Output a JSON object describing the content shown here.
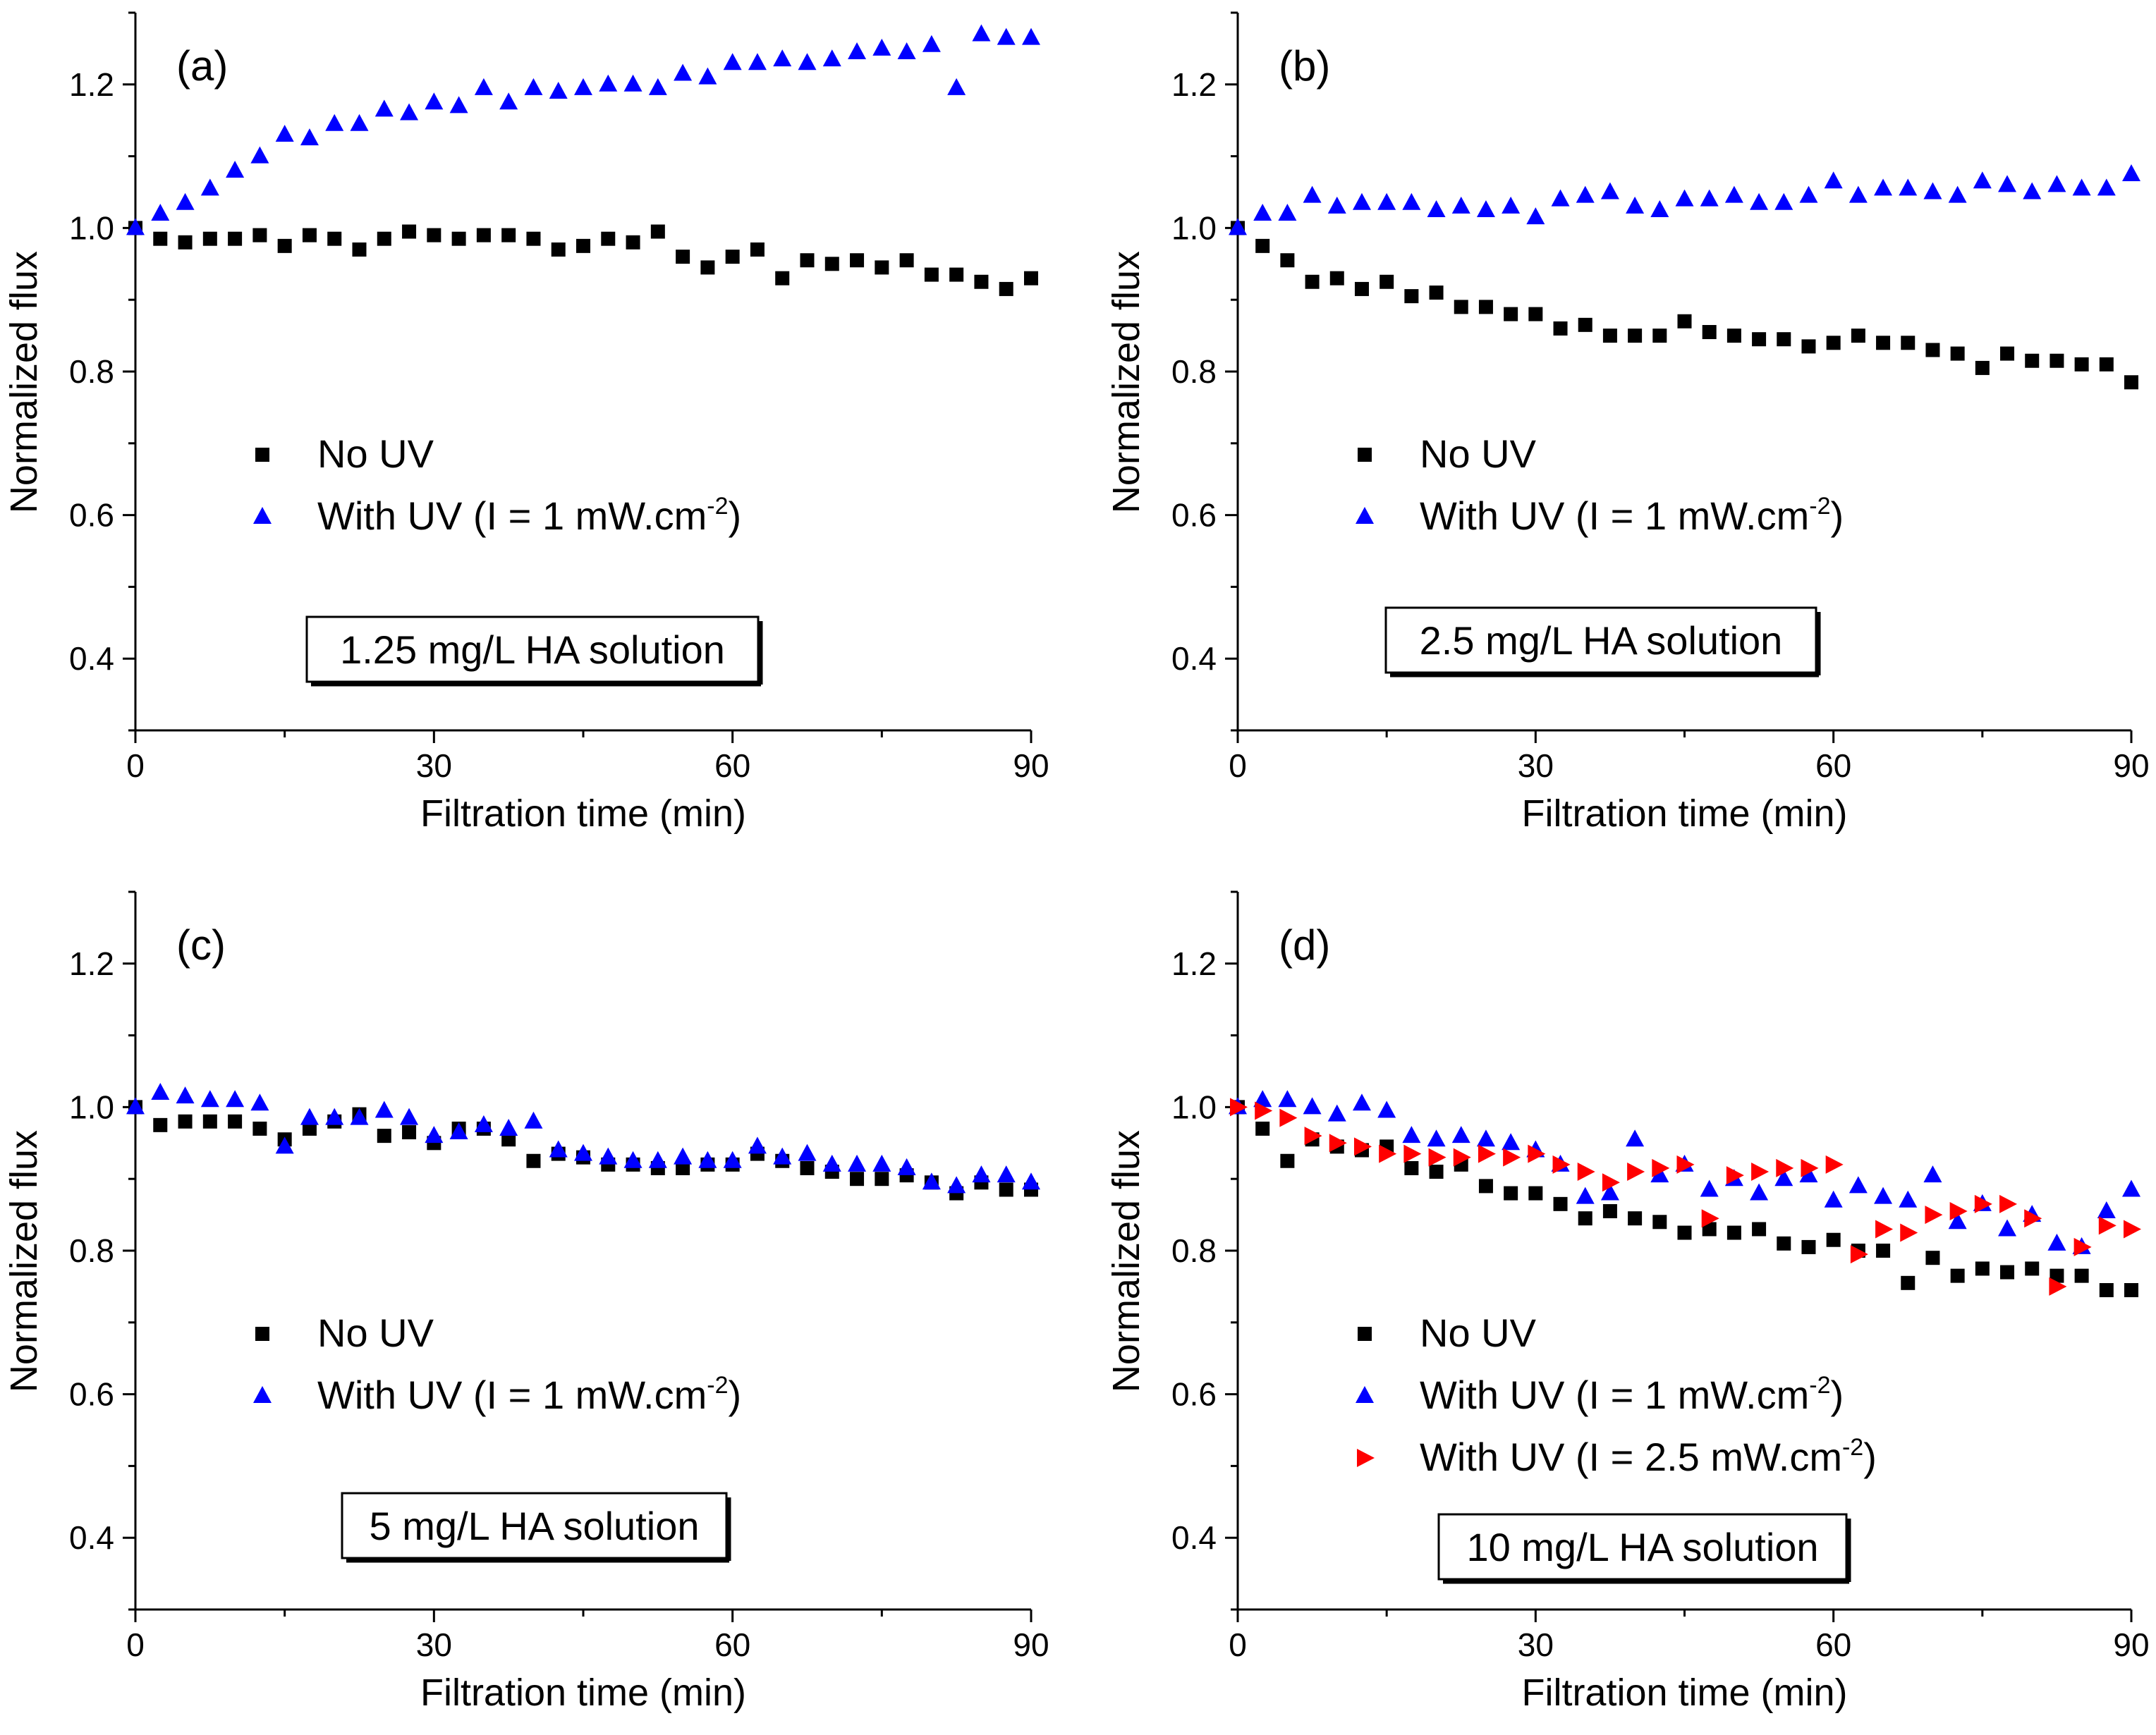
{
  "chart_data": [
    {
      "type": "scatter",
      "panel_label": "(a)",
      "xlabel": "Filtration time (min)",
      "ylabel": "Normalized flux",
      "xlim": [
        0,
        90
      ],
      "ylim": [
        0.3,
        1.3
      ],
      "xticks": [
        "0",
        "30",
        "60",
        "90"
      ],
      "yticks": [
        "0.4",
        "0.6",
        "0.8",
        "1.0",
        "1.2"
      ],
      "annotation": "1.25 mg/L HA solution",
      "legend_position": "center-left",
      "series": [
        {
          "name": "No UV",
          "label_main": "No UV",
          "label_sup": "",
          "label_end": "",
          "marker": "square",
          "color": "#000000",
          "x": [
            0,
            2.5,
            5,
            7.5,
            10,
            12.5,
            15,
            17.5,
            20,
            22.5,
            25,
            27.5,
            30,
            32.5,
            35,
            37.5,
            40,
            42.5,
            45,
            47.5,
            50,
            52.5,
            55,
            57.5,
            60,
            62.5,
            65,
            67.5,
            70,
            72.5,
            75,
            77.5,
            80,
            82.5,
            85,
            87.5,
            90
          ],
          "y": [
            1.0,
            0.985,
            0.98,
            0.985,
            0.985,
            0.99,
            0.975,
            0.99,
            0.985,
            0.97,
            0.985,
            0.995,
            0.99,
            0.985,
            0.99,
            0.99,
            0.985,
            0.97,
            0.975,
            0.985,
            0.98,
            0.995,
            0.96,
            0.945,
            0.96,
            0.97,
            0.93,
            0.955,
            0.95,
            0.955,
            0.945,
            0.955,
            0.935,
            0.935,
            0.925,
            0.915,
            0.93
          ]
        },
        {
          "name": "With UV (I = 1 mW.cm-2)",
          "label_main": "With UV (I = 1 mW.cm",
          "label_sup": "-2",
          "label_end": ")",
          "marker": "triangle",
          "color": "#0000ff",
          "x": [
            0,
            2.5,
            5,
            7.5,
            10,
            12.5,
            15,
            17.5,
            20,
            22.5,
            25,
            27.5,
            30,
            32.5,
            35,
            37.5,
            40,
            42.5,
            45,
            47.5,
            50,
            52.5,
            55,
            57.5,
            60,
            62.5,
            65,
            67.5,
            70,
            72.5,
            75,
            77.5,
            80,
            82.5,
            85,
            87.5,
            90
          ],
          "y": [
            1.0,
            1.02,
            1.035,
            1.055,
            1.08,
            1.1,
            1.13,
            1.125,
            1.145,
            1.145,
            1.165,
            1.16,
            1.175,
            1.17,
            1.195,
            1.175,
            1.195,
            1.19,
            1.195,
            1.2,
            1.2,
            1.195,
            1.215,
            1.21,
            1.23,
            1.23,
            1.235,
            1.23,
            1.235,
            1.245,
            1.25,
            1.245,
            1.255,
            1.195,
            1.27,
            1.265,
            1.265
          ]
        }
      ]
    },
    {
      "type": "scatter",
      "panel_label": "(b)",
      "xlabel": "Filtration time (min)",
      "ylabel": "Normalized flux",
      "xlim": [
        0,
        90
      ],
      "ylim": [
        0.3,
        1.3
      ],
      "xticks": [
        "0",
        "30",
        "60",
        "90"
      ],
      "yticks": [
        "0.4",
        "0.6",
        "0.8",
        "1.0",
        "1.2"
      ],
      "annotation": "2.5 mg/L HA solution",
      "legend_position": "center-left",
      "series": [
        {
          "name": "No UV",
          "label_main": "No UV",
          "label_sup": "",
          "label_end": "",
          "marker": "square",
          "color": "#000000",
          "x": [
            0,
            2.5,
            5,
            7.5,
            10,
            12.5,
            15,
            17.5,
            20,
            22.5,
            25,
            27.5,
            30,
            32.5,
            35,
            37.5,
            40,
            42.5,
            45,
            47.5,
            50,
            52.5,
            55,
            57.5,
            60,
            62.5,
            65,
            67.5,
            70,
            72.5,
            75,
            77.5,
            80,
            82.5,
            85,
            87.5,
            90
          ],
          "y": [
            1.0,
            0.975,
            0.955,
            0.925,
            0.93,
            0.915,
            0.925,
            0.905,
            0.91,
            0.89,
            0.89,
            0.88,
            0.88,
            0.86,
            0.865,
            0.85,
            0.85,
            0.85,
            0.87,
            0.855,
            0.85,
            0.845,
            0.845,
            0.835,
            0.84,
            0.85,
            0.84,
            0.84,
            0.83,
            0.825,
            0.805,
            0.825,
            0.815,
            0.815,
            0.81,
            0.81,
            0.785
          ]
        },
        {
          "name": "With UV (I = 1 mW.cm-2)",
          "label_main": "With UV (I = 1 mW.cm",
          "label_sup": "-2",
          "label_end": ")",
          "marker": "triangle",
          "color": "#0000ff",
          "x": [
            0,
            2.5,
            5,
            7.5,
            10,
            12.5,
            15,
            17.5,
            20,
            22.5,
            25,
            27.5,
            30,
            32.5,
            35,
            37.5,
            40,
            42.5,
            45,
            47.5,
            50,
            52.5,
            55,
            57.5,
            60,
            62.5,
            65,
            67.5,
            70,
            72.5,
            75,
            77.5,
            80,
            82.5,
            85,
            87.5,
            90
          ],
          "y": [
            1.0,
            1.02,
            1.02,
            1.045,
            1.03,
            1.035,
            1.035,
            1.035,
            1.025,
            1.03,
            1.025,
            1.03,
            1.015,
            1.04,
            1.045,
            1.05,
            1.03,
            1.025,
            1.04,
            1.04,
            1.045,
            1.035,
            1.035,
            1.045,
            1.065,
            1.045,
            1.055,
            1.055,
            1.05,
            1.045,
            1.065,
            1.06,
            1.05,
            1.06,
            1.055,
            1.055,
            1.075
          ]
        }
      ]
    },
    {
      "type": "scatter",
      "panel_label": "(c)",
      "xlabel": "Filtration time (min)",
      "ylabel": "Normalized flux",
      "xlim": [
        0,
        90
      ],
      "ylim": [
        0.3,
        1.3
      ],
      "xticks": [
        "0",
        "30",
        "60",
        "90"
      ],
      "yticks": [
        "0.4",
        "0.6",
        "0.8",
        "1.0",
        "1.2"
      ],
      "annotation": "5 mg/L HA solution",
      "legend_position": "center-left",
      "series": [
        {
          "name": "No UV",
          "label_main": "No UV",
          "label_sup": "",
          "label_end": "",
          "marker": "square",
          "color": "#000000",
          "x": [
            0,
            2.5,
            5,
            7.5,
            10,
            12.5,
            15,
            17.5,
            20,
            22.5,
            25,
            27.5,
            30,
            32.5,
            35,
            37.5,
            40,
            42.5,
            45,
            47.5,
            50,
            52.5,
            55,
            57.5,
            60,
            62.5,
            65,
            67.5,
            70,
            72.5,
            75,
            77.5,
            80,
            82.5,
            85,
            87.5,
            90
          ],
          "y": [
            1.0,
            0.975,
            0.98,
            0.98,
            0.98,
            0.97,
            0.955,
            0.97,
            0.98,
            0.99,
            0.96,
            0.965,
            0.95,
            0.97,
            0.97,
            0.955,
            0.925,
            0.935,
            0.93,
            0.92,
            0.92,
            0.915,
            0.915,
            0.92,
            0.92,
            0.935,
            0.925,
            0.915,
            0.91,
            0.9,
            0.9,
            0.905,
            0.895,
            0.88,
            0.895,
            0.885,
            0.885
          ]
        },
        {
          "name": "With UV (I = 1 mW.cm-2)",
          "label_main": "With UV (I = 1 mW.cm",
          "label_sup": "-2",
          "label_end": ")",
          "marker": "triangle",
          "color": "#0000ff",
          "x": [
            0,
            2.5,
            5,
            7.5,
            10,
            12.5,
            15,
            17.5,
            20,
            22.5,
            25,
            27.5,
            30,
            32.5,
            35,
            37.5,
            40,
            42.5,
            45,
            47.5,
            50,
            52.5,
            55,
            57.5,
            60,
            62.5,
            65,
            67.5,
            70,
            72.5,
            75,
            77.5,
            80,
            82.5,
            85,
            87.5,
            90
          ],
          "y": [
            1.0,
            1.02,
            1.015,
            1.01,
            1.01,
            1.005,
            0.945,
            0.985,
            0.985,
            0.985,
            0.995,
            0.985,
            0.96,
            0.965,
            0.975,
            0.97,
            0.98,
            0.94,
            0.935,
            0.93,
            0.925,
            0.925,
            0.93,
            0.925,
            0.925,
            0.945,
            0.93,
            0.935,
            0.92,
            0.92,
            0.92,
            0.915,
            0.895,
            0.89,
            0.905,
            0.905,
            0.895
          ]
        }
      ]
    },
    {
      "type": "scatter",
      "panel_label": "(d)",
      "xlabel": "Filtration time (min)",
      "ylabel": "Normalized flux",
      "xlim": [
        0,
        90
      ],
      "ylim": [
        0.3,
        1.3
      ],
      "xticks": [
        "0",
        "30",
        "60",
        "90"
      ],
      "yticks": [
        "0.4",
        "0.6",
        "0.8",
        "1.0",
        "1.2"
      ],
      "annotation": "10 mg/L HA solution",
      "legend_position": "center-left",
      "series": [
        {
          "name": "No UV",
          "label_main": "No UV",
          "label_sup": "",
          "label_end": "",
          "marker": "square",
          "color": "#000000",
          "x": [
            0,
            2.5,
            5,
            7.5,
            10,
            12.5,
            15,
            17.5,
            20,
            22.5,
            25,
            27.5,
            30,
            32.5,
            35,
            37.5,
            40,
            42.5,
            45,
            47.5,
            50,
            52.5,
            55,
            57.5,
            60,
            62.5,
            65,
            67.5,
            70,
            72.5,
            75,
            77.5,
            80,
            82.5,
            85,
            87.5,
            90
          ],
          "y": [
            1.0,
            0.97,
            0.925,
            0.955,
            0.945,
            0.94,
            0.945,
            0.915,
            0.91,
            0.92,
            0.89,
            0.88,
            0.88,
            0.865,
            0.845,
            0.855,
            0.845,
            0.84,
            0.825,
            0.83,
            0.825,
            0.83,
            0.81,
            0.805,
            0.815,
            0.8,
            0.8,
            0.755,
            0.79,
            0.765,
            0.775,
            0.77,
            0.775,
            0.765,
            0.765,
            0.745,
            0.745
          ]
        },
        {
          "name": "With UV (I = 1 mW.cm-2)",
          "label_main": "With UV (I = 1 mW.cm",
          "label_sup": "-2",
          "label_end": ")",
          "marker": "triangle",
          "color": "#0000ff",
          "x": [
            0,
            2.5,
            5,
            7.5,
            10,
            12.5,
            15,
            17.5,
            20,
            22.5,
            25,
            27.5,
            30,
            32.5,
            35,
            37.5,
            40,
            42.5,
            45,
            47.5,
            50,
            52.5,
            55,
            57.5,
            60,
            62.5,
            65,
            67.5,
            70,
            72.5,
            75,
            77.5,
            80,
            82.5,
            85,
            87.5,
            90
          ],
          "y": [
            1.0,
            1.01,
            1.01,
            1.0,
            0.99,
            1.005,
            0.995,
            0.96,
            0.955,
            0.96,
            0.955,
            0.95,
            0.94,
            0.92,
            0.875,
            0.88,
            0.955,
            0.905,
            0.92,
            0.885,
            0.9,
            0.88,
            0.9,
            0.905,
            0.87,
            0.89,
            0.875,
            0.87,
            0.905,
            0.84,
            0.865,
            0.83,
            0.85,
            0.81,
            0.805,
            0.855,
            0.885
          ]
        },
        {
          "name": "With UV (I = 2.5 mW.cm-2)",
          "label_main": "With UV (I = 2.5 mW.cm",
          "label_sup": "-2",
          "label_end": ")",
          "marker": "triangle-right",
          "color": "#ff0000",
          "x": [
            0,
            2.5,
            5,
            7.5,
            10,
            12.5,
            15,
            17.5,
            20,
            22.5,
            25,
            27.5,
            30,
            32.5,
            35,
            37.5,
            40,
            42.5,
            45,
            47.5,
            50,
            52.5,
            55,
            57.5,
            60,
            62.5,
            65,
            67.5,
            70,
            72.5,
            75,
            77.5,
            80,
            82.5,
            85,
            87.5,
            90
          ],
          "y": [
            1.0,
            0.995,
            0.985,
            0.96,
            0.95,
            0.945,
            0.935,
            0.935,
            0.93,
            0.93,
            0.935,
            0.93,
            0.935,
            0.92,
            0.91,
            0.895,
            0.91,
            0.915,
            0.92,
            0.845,
            0.905,
            0.91,
            0.915,
            0.915,
            0.92,
            0.795,
            0.83,
            0.825,
            0.85,
            0.855,
            0.865,
            0.865,
            0.845,
            0.75,
            0.805,
            0.835,
            0.83
          ]
        }
      ]
    }
  ]
}
